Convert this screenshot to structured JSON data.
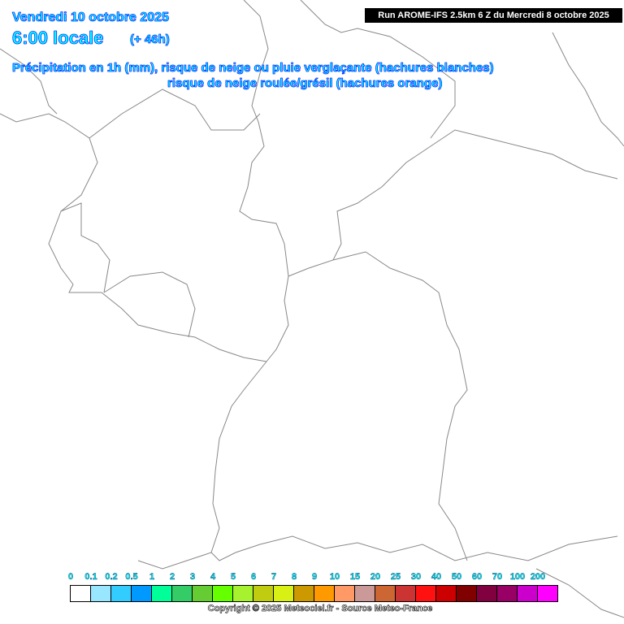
{
  "header": {
    "date": "Vendredi 10 octobre 2025",
    "hour": "6:00 locale",
    "lead": "(+ 46h)",
    "title_line1": "Précipitation en 1h (mm), risque de neige ou pluie verglaçante (hachures blanches)",
    "title_line2": "risque de neige roulée/grésil (hachures orange)"
  },
  "run_label": "Run AROME-IFS 2.5km 6 Z du Mercredi 8 octobre 2025",
  "legend": {
    "labels": [
      "0",
      "0.1",
      "0.2",
      "0.5",
      "1",
      "2",
      "3",
      "4",
      "5",
      "6",
      "7",
      "8",
      "9",
      "10",
      "15",
      "20",
      "25",
      "30",
      "40",
      "50",
      "60",
      "70",
      "100",
      "200"
    ],
    "colors": [
      "#ffffff",
      "#99e6ff",
      "#33ccff",
      "#0099ff",
      "#00ff99",
      "#33cc66",
      "#66cc33",
      "#66ff00",
      "#a6f22e",
      "#bfcc10",
      "#d9f015",
      "#cc9900",
      "#ff9900",
      "#ff9966",
      "#cc9999",
      "#cc6633",
      "#cc3333",
      "#ff1111",
      "#cc0000",
      "#800000",
      "#800040",
      "#990066",
      "#cc00cc",
      "#ff00ff"
    ]
  },
  "copyright": "Copyright © 2025 Meteociel.fr - Source Meteo-France"
}
